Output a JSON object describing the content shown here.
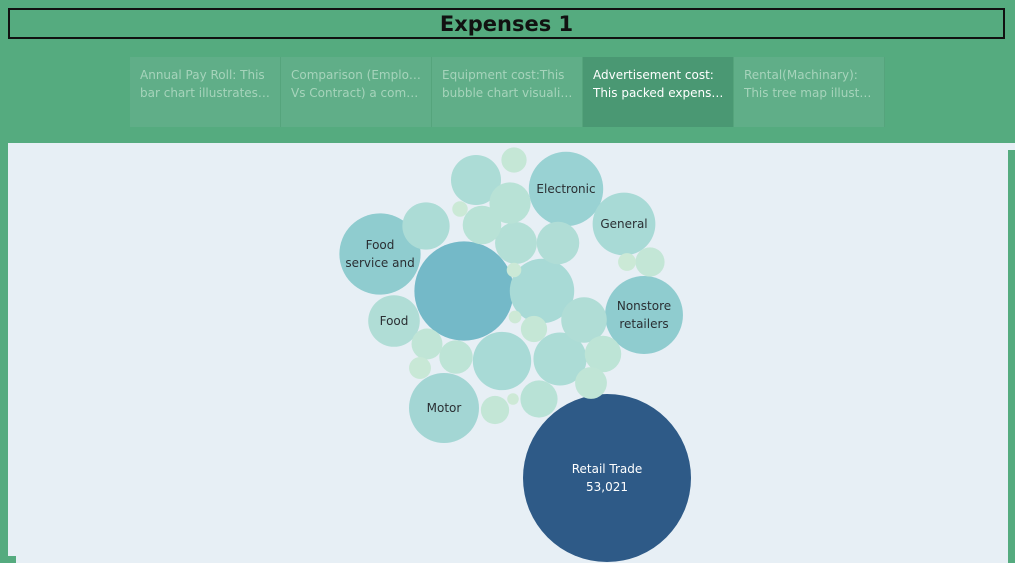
{
  "title": "Expenses 1",
  "story_points": [
    {
      "line1": "Annual Pay Roll: This",
      "line2": "bar chart illustrates t..",
      "active": false
    },
    {
      "line1": "Comparison (Employee",
      "line2": "Vs Contract) a compa..",
      "active": false
    },
    {
      "line1": "Equipment cost:This",
      "line2": "bubble chart visualiza..",
      "active": false
    },
    {
      "line1": "Advertisement cost:",
      "line2": "This packed expenses..",
      "active": true
    },
    {
      "line1": "Rental(Machinary):",
      "line2": "This tree map illustra..",
      "active": false
    }
  ],
  "chart_data": {
    "type": "packed-bubble",
    "bubbles": [
      {
        "label": [
          "Retail Trade",
          "53,021"
        ],
        "value": 53021,
        "color": "#2e5a87",
        "text_color": "#ffffff"
      },
      {
        "label": [],
        "value": 18500,
        "color": "#74b9c8"
      },
      {
        "label": [
          "Electronic"
        ],
        "value": 10400,
        "color": "#99d2d3"
      },
      {
        "label": [
          "Food",
          "service and"
        ],
        "value": 12400,
        "color": "#8fcccf"
      },
      {
        "label": [
          "Nonstore",
          "retailers"
        ],
        "value": 11400,
        "color": "#8fcccf"
      },
      {
        "label": [
          "Motor"
        ],
        "value": 9200,
        "color": "#a3d6d4"
      },
      {
        "label": [
          "General"
        ],
        "value": 7400,
        "color": "#a8dad6"
      },
      {
        "label": [
          "Food"
        ],
        "value": 5000,
        "color": "#b0ddd6"
      },
      {
        "label": [],
        "value": 7800,
        "color": "#a8dad6"
      },
      {
        "label": [],
        "value": 6400,
        "color": "#a8dad6"
      },
      {
        "label": [],
        "value": 5300,
        "color": "#acdcd6"
      },
      {
        "label": [],
        "value": 4700,
        "color": "#acdcd6"
      },
      {
        "label": [],
        "value": 4200,
        "color": "#acdcd6"
      },
      {
        "label": [],
        "value": 3900,
        "color": "#b0ddd6"
      },
      {
        "label": [],
        "value": 3400,
        "color": "#b0ddd6"
      },
      {
        "label": [],
        "value": 3300,
        "color": "#b3dfd6"
      },
      {
        "label": [],
        "value": 3200,
        "color": "#b8e2d6"
      },
      {
        "label": [],
        "value": 2800,
        "color": "#b8e2d6"
      },
      {
        "label": [],
        "value": 2600,
        "color": "#b8e2d6"
      },
      {
        "label": [],
        "value": 2500,
        "color": "#bde4d6"
      },
      {
        "label": [],
        "value": 2100,
        "color": "#bde4d6"
      },
      {
        "label": [],
        "value": 1900,
        "color": "#c0e5d6"
      },
      {
        "label": [],
        "value": 1800,
        "color": "#c0e5d6"
      },
      {
        "label": [],
        "value": 1600,
        "color": "#c3e6d6"
      },
      {
        "label": [],
        "value": 1500,
        "color": "#c3e6d6"
      },
      {
        "label": [],
        "value": 1300,
        "color": "#c5e7d6"
      },
      {
        "label": [],
        "value": 1200,
        "color": "#c5e7d6"
      },
      {
        "label": [],
        "value": 900,
        "color": "#c8e8d6"
      },
      {
        "label": [],
        "value": 600,
        "color": "#cbe9d6"
      },
      {
        "label": [],
        "value": 450,
        "color": "#cbe9d6"
      },
      {
        "label": [],
        "value": 400,
        "color": "#cbe9d6"
      },
      {
        "label": [],
        "value": 300,
        "color": "#cde9d6"
      },
      {
        "label": [],
        "value": 250,
        "color": "#cde9d6"
      }
    ]
  }
}
